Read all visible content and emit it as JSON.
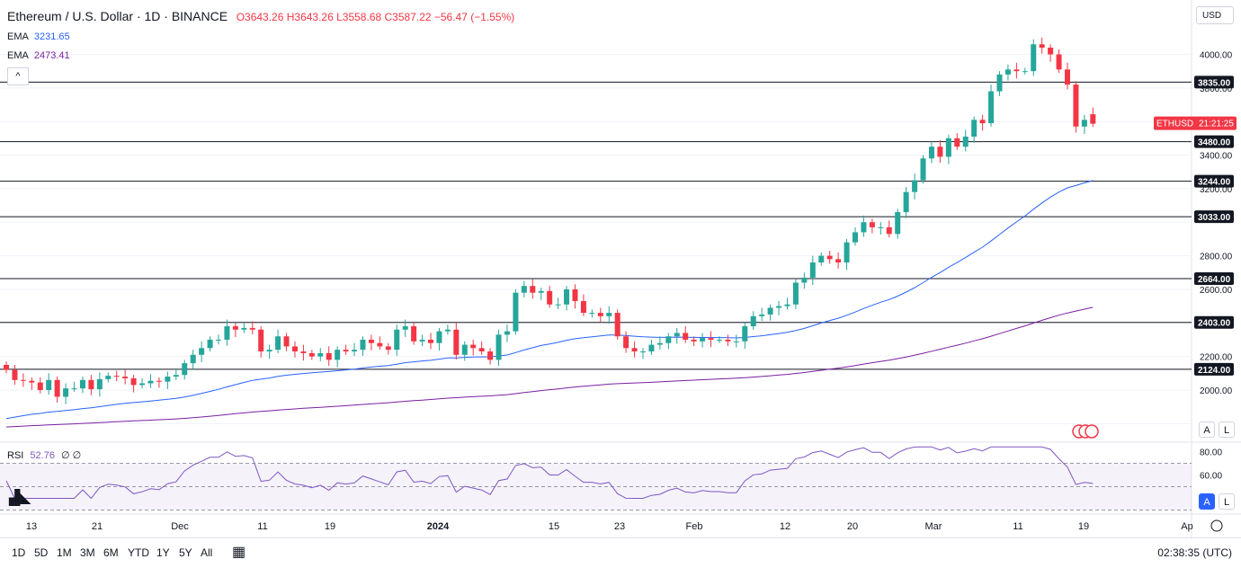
{
  "header": {
    "title": "Ethereum / U.S. Dollar · 1D · BINANCE",
    "ohlc": "O3643.26 H3643.26 L3558.68 C3587.22 −56.47 (−1.55%)"
  },
  "ema_fast": {
    "label": "EMA",
    "value": "3231.65"
  },
  "ema_slow": {
    "label": "EMA",
    "value": "2473.41"
  },
  "collapse_icon": "^",
  "rsi": {
    "label": "RSI",
    "value": "52.76",
    "extra": "∅ ∅"
  },
  "currency": "USD",
  "price_tag": {
    "symbol": "ETHUSD",
    "countdown": "21:21:25"
  },
  "levels": [
    "3835.00",
    "3480.00",
    "3244.00",
    "3033.00",
    "2664.00",
    "2403.00",
    "2124.00"
  ],
  "price_ticks": [
    "4000.00",
    "3800.00",
    "3400.00",
    "3200.00",
    "2800.00",
    "2600.00",
    "2200.00",
    "2000.00"
  ],
  "rsi_ticks": [
    "80.00",
    "60.00"
  ],
  "time_ticks": [
    "13",
    "21",
    "Dec",
    "11",
    "19",
    "2024",
    "15",
    "23",
    "Feb",
    "12",
    "20",
    "Mar",
    "11",
    "19",
    "Ap"
  ],
  "ranges": [
    "1D",
    "5D",
    "1M",
    "3M",
    "6M",
    "YTD",
    "1Y",
    "5Y",
    "All"
  ],
  "clock": "02:38:35 (UTC)",
  "al_buttons": {
    "a": "A",
    "l": "L"
  },
  "colors": {
    "up": "#26a69a",
    "down": "#f23645",
    "ema_fast": "#2962ff",
    "ema_slow": "#7b1fa2",
    "rsi": "#7e57c2",
    "brand": "#131722"
  },
  "chart_data": {
    "type": "candlestick",
    "symbol": "ETHUSD",
    "exchange": "BINANCE",
    "interval": "1D",
    "x": [
      "Nov 11",
      "Nov 12",
      "Nov 13",
      "Nov 14",
      "Nov 15",
      "Nov 16",
      "Nov 17",
      "Nov 18",
      "Nov 19",
      "Nov 20",
      "Nov 21",
      "Nov 22",
      "Nov 23",
      "Nov 24",
      "Nov 25",
      "Nov 26",
      "Nov 27",
      "Nov 28",
      "Nov 29",
      "Nov 30",
      "Dec 1",
      "Dec 2",
      "Dec 3",
      "Dec 4",
      "Dec 5",
      "Dec 6",
      "Dec 7",
      "Dec 8",
      "Dec 9",
      "Dec 10",
      "Dec 11",
      "Dec 12",
      "Dec 13",
      "Dec 14",
      "Dec 15",
      "Dec 16",
      "Dec 17",
      "Dec 18",
      "Dec 19",
      "Dec 20",
      "Dec 21",
      "Dec 22",
      "Dec 23",
      "Dec 24",
      "Dec 25",
      "Dec 26",
      "Dec 27",
      "Dec 28",
      "Dec 29",
      "Dec 30",
      "Dec 31",
      "Jan 1",
      "Jan 2",
      "Jan 3",
      "Jan 4",
      "Jan 5",
      "Jan 6",
      "Jan 7",
      "Jan 8",
      "Jan 9",
      "Jan 10",
      "Jan 11",
      "Jan 12",
      "Jan 13",
      "Jan 14",
      "Jan 15",
      "Jan 16",
      "Jan 17",
      "Jan 18",
      "Jan 19",
      "Jan 20",
      "Jan 21",
      "Jan 22",
      "Jan 23",
      "Jan 24",
      "Jan 25",
      "Jan 26",
      "Jan 27",
      "Jan 28",
      "Jan 29",
      "Jan 30",
      "Jan 31",
      "Feb 1",
      "Feb 2",
      "Feb 3",
      "Feb 4",
      "Feb 5",
      "Feb 6",
      "Feb 7",
      "Feb 8",
      "Feb 9",
      "Feb 10",
      "Feb 11",
      "Feb 12",
      "Feb 13",
      "Feb 14",
      "Feb 15",
      "Feb 16",
      "Feb 17",
      "Feb 18",
      "Feb 19",
      "Feb 20",
      "Feb 21",
      "Feb 22",
      "Feb 23",
      "Feb 24",
      "Feb 25",
      "Feb 26",
      "Feb 27",
      "Feb 28",
      "Feb 29",
      "Mar 1",
      "Mar 2",
      "Mar 3",
      "Mar 4",
      "Mar 5",
      "Mar 6",
      "Mar 7",
      "Mar 8",
      "Mar 9",
      "Mar 10",
      "Mar 11",
      "Mar 12",
      "Mar 13",
      "Mar 14",
      "Mar 15",
      "Mar 16",
      "Mar 17",
      "Mar 18"
    ],
    "close": [
      2120,
      2060,
      2055,
      2045,
      2000,
      2060,
      1960,
      2010,
      2010,
      2060,
      2005,
      2065,
      2085,
      2080,
      2070,
      2030,
      2040,
      2055,
      2050,
      2080,
      2090,
      2160,
      2210,
      2250,
      2300,
      2300,
      2380,
      2360,
      2370,
      2360,
      2230,
      2240,
      2320,
      2260,
      2230,
      2220,
      2200,
      2220,
      2180,
      2240,
      2230,
      2240,
      2300,
      2280,
      2260,
      2240,
      2360,
      2380,
      2290,
      2300,
      2280,
      2350,
      2360,
      2210,
      2270,
      2250,
      2230,
      2180,
      2330,
      2350,
      2580,
      2620,
      2580,
      2590,
      2510,
      2510,
      2600,
      2530,
      2460,
      2460,
      2440,
      2460,
      2320,
      2250,
      2230,
      2230,
      2270,
      2280,
      2320,
      2340,
      2300,
      2290,
      2310,
      2300,
      2300,
      2290,
      2290,
      2380,
      2440,
      2450,
      2490,
      2500,
      2510,
      2640,
      2670,
      2760,
      2800,
      2780,
      2760,
      2880,
      2940,
      3000,
      2970,
      2970,
      2930,
      3060,
      3180,
      3250,
      3380,
      3450,
      3390,
      3500,
      3450,
      3510,
      3610,
      3590,
      3780,
      3880,
      3910,
      3900,
      3900,
      4060,
      4040,
      4000,
      3910,
      3820,
      3570,
      3610,
      3587
    ],
    "ema_fast": {
      "label": "EMA",
      "value": 3231.65
    },
    "ema_slow": {
      "label": "EMA",
      "value": 2473.41
    },
    "levels": [
      3835,
      3480,
      3244,
      3033,
      2664,
      2403,
      2124
    ],
    "ylim": [
      1760,
      4190
    ],
    "rsi": {
      "value": 52.76,
      "ylim": [
        20,
        90
      ],
      "bands": [
        30,
        70
      ]
    },
    "last": {
      "open": 3643.26,
      "high": 3643.26,
      "low": 3558.68,
      "close": 3587.22,
      "change": -56.47,
      "change_pct": -1.55
    }
  }
}
